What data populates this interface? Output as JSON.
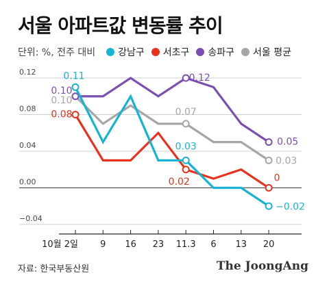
{
  "title": "서울 아파트값 변동률 추이",
  "unit_label": "단위: %, 전주 대비",
  "source": "자료: 한국부동산원",
  "brand": "The JoongAng",
  "colors": {
    "gangnam": "#16b3d2",
    "seocho": "#e8321e",
    "songpa": "#7a4fb0",
    "seoul": "#a6a6a6"
  },
  "chart_data": {
    "type": "line",
    "title": "서울 아파트값 변동률 추이",
    "categories": [
      "10월 2일",
      "9",
      "16",
      "23",
      "11.3",
      "6",
      "13",
      "20"
    ],
    "y_ticks": [
      -0.04,
      0.0,
      0.04,
      0.08,
      0.12
    ],
    "y_tick_labels": [
      "−0.04",
      "0.00",
      "0.04",
      "0.08",
      "0.12"
    ],
    "ylim": [
      -0.04,
      0.12
    ],
    "grid": true,
    "legend_position": "top-left",
    "series": [
      {
        "name": "강남구",
        "color_key": "gangnam",
        "values": [
          0.11,
          0.05,
          0.1,
          0.03,
          0.03,
          0.0,
          0.0,
          -0.02
        ],
        "labels": [
          {
            "index": 0,
            "text": "0.11"
          },
          {
            "index": 4,
            "text": "0.03"
          },
          {
            "index": 7,
            "text": "−0.02"
          }
        ]
      },
      {
        "name": "서초구",
        "color_key": "seocho",
        "values": [
          0.08,
          0.03,
          0.03,
          0.06,
          0.02,
          0.01,
          0.02,
          0.0
        ],
        "labels": [
          {
            "index": 0,
            "text": "0.08"
          },
          {
            "index": 4,
            "text": "0.02"
          },
          {
            "index": 7,
            "text": "0"
          }
        ]
      },
      {
        "name": "송파구",
        "color_key": "songpa",
        "values": [
          0.1,
          0.1,
          0.12,
          0.1,
          0.12,
          0.11,
          0.07,
          0.05
        ],
        "labels": [
          {
            "index": 0,
            "text": "0.10"
          },
          {
            "index": 4,
            "text": "0.12"
          },
          {
            "index": 7,
            "text": "0.05"
          }
        ]
      },
      {
        "name": "서울 평균",
        "color_key": "seoul",
        "values": [
          0.1,
          0.07,
          0.09,
          0.07,
          0.07,
          0.05,
          0.05,
          0.03
        ],
        "labels": [
          {
            "index": 0,
            "text": "0.10"
          },
          {
            "index": 4,
            "text": "0.07"
          },
          {
            "index": 7,
            "text": "0.03"
          }
        ]
      }
    ]
  }
}
